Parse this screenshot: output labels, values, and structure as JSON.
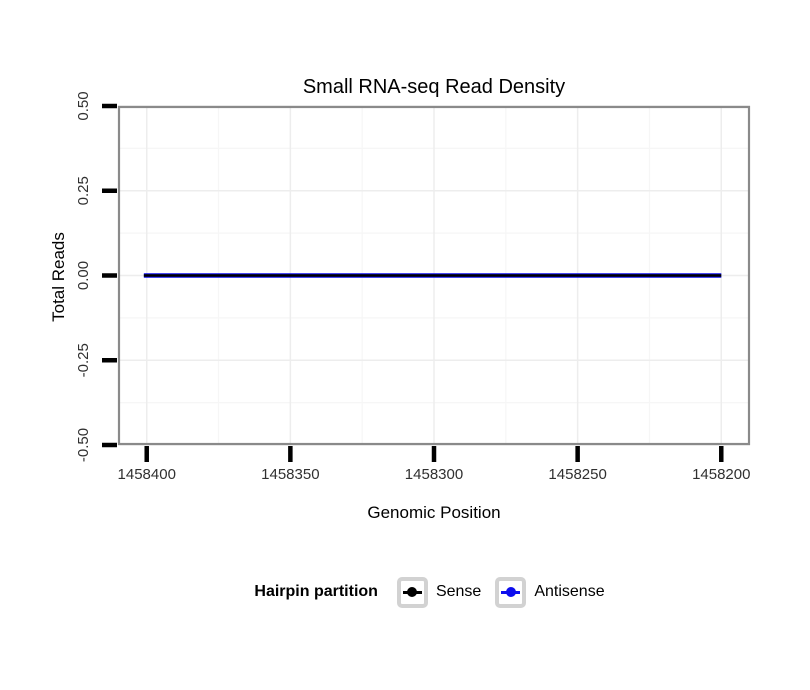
{
  "chart_data": {
    "type": "line",
    "title": "Small RNA-seq Read Density",
    "xlabel": "Genomic Position",
    "ylabel": "Total Reads",
    "x_axis": {
      "reversed": true,
      "domain_left_to_right": [
        1458410,
        1458190
      ],
      "ticks": [
        {
          "value": 1458400,
          "label": "1458400"
        },
        {
          "value": 1458350,
          "label": "1458350"
        },
        {
          "value": 1458300,
          "label": "1458300"
        },
        {
          "value": 1458250,
          "label": "1458250"
        },
        {
          "value": 1458200,
          "label": "1458200"
        }
      ]
    },
    "y_axis": {
      "domain_bottom_to_top": [
        -0.5,
        0.5
      ],
      "ticks": [
        {
          "value": 0.5,
          "label": "0.50"
        },
        {
          "value": 0.25,
          "label": "0.25"
        },
        {
          "value": 0,
          "label": "0.00"
        },
        {
          "value": -0.25,
          "label": "-0.25"
        },
        {
          "value": -0.5,
          "label": "-0.50"
        }
      ]
    },
    "grid": {
      "major": true,
      "minor": true
    },
    "series": [
      {
        "name": "Sense",
        "color": "#000000",
        "stroke_width": 2.4,
        "x": [
          1458401,
          1458200
        ],
        "y": [
          0,
          0
        ]
      },
      {
        "name": "Antisense",
        "color": "#0D0DEE",
        "stroke_width": 4.6,
        "x": [
          1458401,
          1458200
        ],
        "y": [
          0,
          0
        ]
      }
    ],
    "legend": {
      "title": "Hairpin partition",
      "position": "bottom",
      "entries": [
        {
          "label": "Sense",
          "color": "#000000"
        },
        {
          "label": "Antisense",
          "color": "#0D0DEE"
        }
      ]
    }
  },
  "style": {
    "background": "#FFFFFF",
    "panel_border": "#8A8A8A",
    "grid_major": "#EDEDED",
    "grid_minor": "#F6F6F6",
    "tick_color": "#000000",
    "tick_label_color": "#303030",
    "text_color": "#000000",
    "legend_key_border": "#D2D2D2"
  }
}
